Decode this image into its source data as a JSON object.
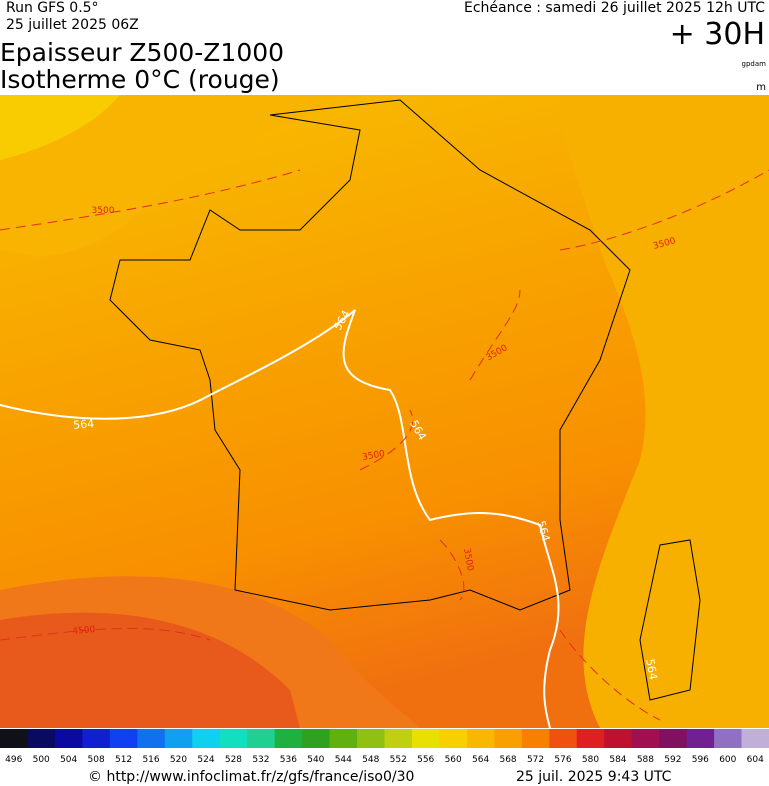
{
  "header": {
    "run": "Run GFS 0.5°",
    "date": "25 juillet 2025 06Z",
    "echeance": "Echéance : samedi 26 juillet 2025 12h UTC",
    "offset": "+ 30H",
    "title1": "Epaisseur Z500-Z1000",
    "title2": "Isotherme 0°C (rouge)",
    "unit1": "gpdam",
    "unit2": "m"
  },
  "map": {
    "contour_labels": [
      {
        "text": "564",
        "kind": "thickness"
      },
      {
        "text": "564",
        "kind": "thickness"
      },
      {
        "text": "564",
        "kind": "thickness"
      },
      {
        "text": "564",
        "kind": "thickness"
      },
      {
        "text": "564",
        "kind": "thickness"
      },
      {
        "text": "3500",
        "kind": "iso0"
      },
      {
        "text": "3500",
        "kind": "iso0"
      },
      {
        "text": "3500",
        "kind": "iso0"
      },
      {
        "text": "3500",
        "kind": "iso0"
      },
      {
        "text": "3500",
        "kind": "iso0"
      },
      {
        "text": "4500",
        "kind": "iso0"
      }
    ]
  },
  "colorbar": {
    "labels": [
      496,
      500,
      504,
      508,
      512,
      516,
      520,
      524,
      528,
      532,
      536,
      540,
      544,
      548,
      552,
      556,
      560,
      564,
      568,
      572,
      576,
      580,
      584,
      588,
      592,
      596,
      600,
      604
    ],
    "colors": [
      "#101018",
      "#0a0a60",
      "#0a0aa0",
      "#1020d0",
      "#1040f0",
      "#1070f0",
      "#10a0f0",
      "#10d0f0",
      "#10e0c0",
      "#20d090",
      "#20b040",
      "#30a020",
      "#60b010",
      "#90c010",
      "#c0d010",
      "#e8e000",
      "#f8d000",
      "#f8b800",
      "#f8a000",
      "#f88000",
      "#f05010",
      "#e02020",
      "#c01030",
      "#a01050",
      "#801060",
      "#702090",
      "#9070c0",
      "#c0b0d8"
    ]
  },
  "footer": {
    "url": "© http://www.infoclimat.fr/z/gfs/france/iso0/30",
    "timestamp": "25 juil. 2025  9:43 UTC"
  }
}
